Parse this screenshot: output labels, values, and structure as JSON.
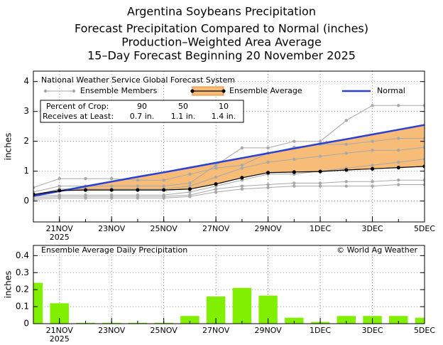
{
  "titles": [
    "Argentina Soybeans Precipitation",
    "Forecast Precipitation Compared to Normal (inches)",
    "Production–Weighted Area Average",
    "15–Day Forecast Beginning 20 November 2025"
  ],
  "chart_data": [
    {
      "type": "line",
      "legend_header": "National Weather Service Global Forecast System",
      "ylabel": "inches",
      "x": [
        "2025-11-20",
        "2025-11-21",
        "2025-11-22",
        "2025-11-23",
        "2025-11-24",
        "2025-11-25",
        "2025-11-26",
        "2025-11-27",
        "2025-11-28",
        "2025-11-29",
        "2025-11-30",
        "2025-12-01",
        "2025-12-02",
        "2025-12-03",
        "2025-12-04",
        "2025-12-05"
      ],
      "xlim": [
        "2025-11-20",
        "2025-12-05"
      ],
      "xticks": [
        {
          "value": "2025-11-21",
          "label": "21NOV"
        },
        {
          "value": "2025-11-23",
          "label": "23NOV"
        },
        {
          "value": "2025-11-25",
          "label": "25NOV"
        },
        {
          "value": "2025-11-27",
          "label": "27NOV"
        },
        {
          "value": "2025-11-29",
          "label": "29NOV"
        },
        {
          "value": "2025-12-01",
          "label": "1DEC"
        },
        {
          "value": "2025-12-03",
          "label": "3DEC"
        },
        {
          "value": "2025-12-05",
          "label": "5DEC"
        }
      ],
      "x_year_label": "2025",
      "ylim": [
        -0.7,
        4.35
      ],
      "yticks": [
        0,
        1,
        2,
        3,
        4
      ],
      "grid": true,
      "members": {
        "name": "Ensemble Members",
        "color": "#a8a8a8",
        "values": [
          [
            0.3,
            0.5,
            0.5,
            0.5,
            0.5,
            0.5,
            0.6,
            1.2,
            1.78,
            1.78,
            2.0,
            2.0,
            2.7,
            3.2,
            3.2,
            3.2
          ],
          [
            0.45,
            0.75,
            0.75,
            0.75,
            0.7,
            0.7,
            0.9,
            1.1,
            1.2,
            1.6,
            1.8,
            1.9,
            1.9,
            2.0,
            2.1,
            2.1
          ],
          [
            0.2,
            0.4,
            0.4,
            0.4,
            0.4,
            0.4,
            0.5,
            0.8,
            1.1,
            1.3,
            1.4,
            1.5,
            1.6,
            1.7,
            1.7,
            1.8
          ],
          [
            0.15,
            0.2,
            0.2,
            0.2,
            0.2,
            0.2,
            0.3,
            0.5,
            0.7,
            0.9,
            0.9,
            1.0,
            1.1,
            1.2,
            1.3,
            1.4
          ],
          [
            0.1,
            0.15,
            0.15,
            0.15,
            0.15,
            0.15,
            0.2,
            0.4,
            0.5,
            0.55,
            0.6,
            0.6,
            0.65,
            0.65,
            0.7,
            0.7
          ],
          [
            0.05,
            0.1,
            0.1,
            0.1,
            0.1,
            0.1,
            0.15,
            0.3,
            0.4,
            0.45,
            0.5,
            0.5,
            0.5,
            0.5,
            0.55,
            0.55
          ]
        ]
      },
      "series": [
        {
          "name": "Ensemble Average",
          "color": "#000000",
          "values": [
            0.22,
            0.35,
            0.37,
            0.37,
            0.37,
            0.37,
            0.4,
            0.57,
            0.78,
            0.95,
            0.97,
            0.99,
            1.04,
            1.08,
            1.12,
            1.16
          ]
        },
        {
          "name": "Normal",
          "color": "#2a3fd6",
          "values": [
            0.17,
            0.33,
            0.49,
            0.65,
            0.81,
            0.96,
            1.12,
            1.28,
            1.44,
            1.6,
            1.76,
            1.92,
            2.07,
            2.23,
            2.39,
            2.55
          ]
        }
      ],
      "band_color": "#f7bd78",
      "crop_table": {
        "header_row": [
          "Percent of Crop:",
          "90",
          "50",
          "10"
        ],
        "row": [
          "Receives at Least:",
          "0.7 in.",
          "1.1 in.",
          "1.4 in."
        ]
      }
    },
    {
      "type": "bar",
      "title": "Ensemble Average Daily Precipitation",
      "credit": "© World Ag Weather",
      "ylabel": "inches",
      "x": [
        "2025-11-20",
        "2025-11-21",
        "2025-11-22",
        "2025-11-23",
        "2025-11-24",
        "2025-11-25",
        "2025-11-26",
        "2025-11-27",
        "2025-11-28",
        "2025-11-29",
        "2025-11-30",
        "2025-12-01",
        "2025-12-02",
        "2025-12-03",
        "2025-12-04",
        "2025-12-05"
      ],
      "xlim": [
        "2025-11-20",
        "2025-12-05"
      ],
      "xticks": [
        {
          "value": "2025-11-21",
          "label": "21NOV"
        },
        {
          "value": "2025-11-23",
          "label": "23NOV"
        },
        {
          "value": "2025-11-25",
          "label": "25NOV"
        },
        {
          "value": "2025-11-27",
          "label": "27NOV"
        },
        {
          "value": "2025-11-29",
          "label": "29NOV"
        },
        {
          "value": "2025-12-01",
          "label": "1DEC"
        },
        {
          "value": "2025-12-03",
          "label": "3DEC"
        },
        {
          "value": "2025-12-05",
          "label": "5DEC"
        }
      ],
      "x_year_label": "2025",
      "values": [
        0.24,
        0.12,
        0.005,
        0.005,
        0.005,
        0.005,
        0.045,
        0.16,
        0.21,
        0.165,
        0.035,
        0.01,
        0.045,
        0.045,
        0.045,
        0.035
      ],
      "color": "#80f000",
      "ylim": [
        0,
        0.46
      ],
      "yticks": [
        0,
        0.1,
        0.2,
        0.3,
        0.4
      ],
      "grid": true
    }
  ]
}
